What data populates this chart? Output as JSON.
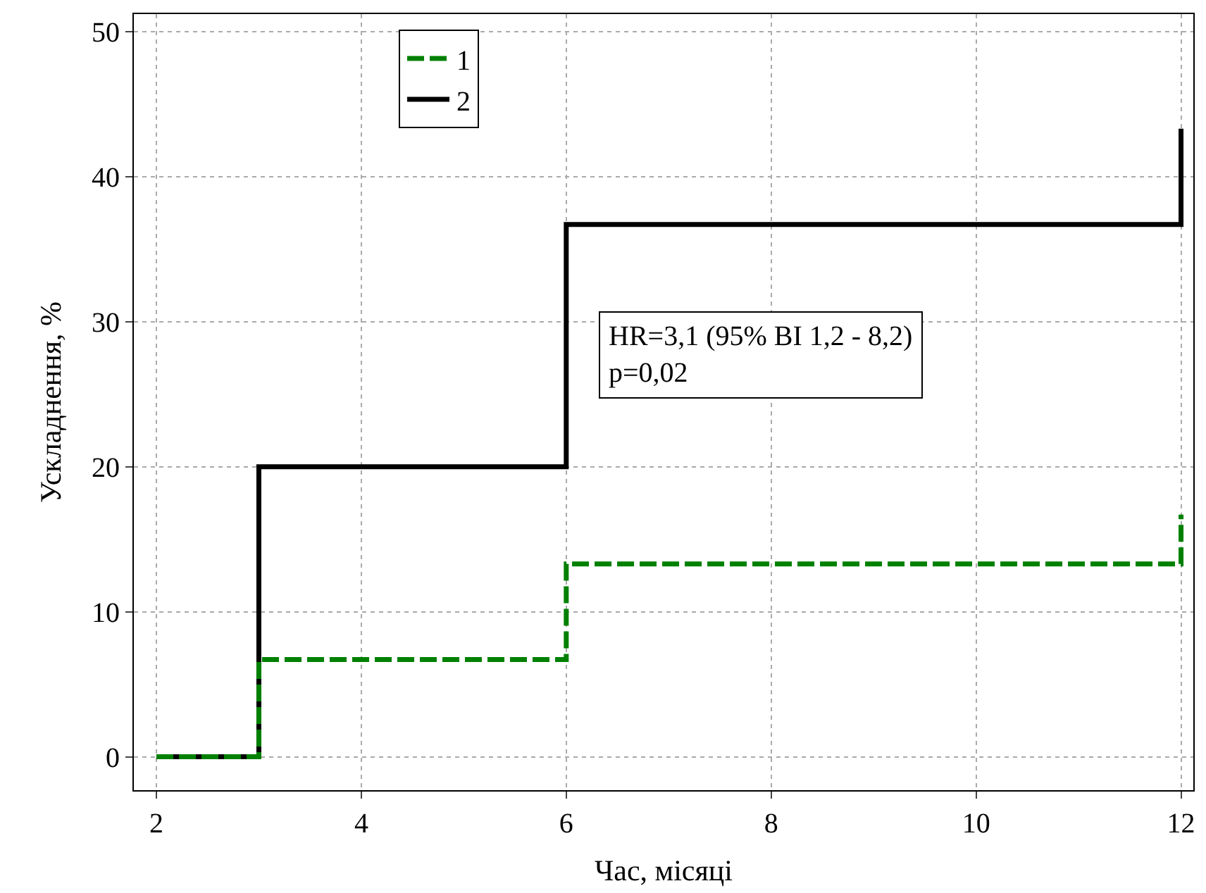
{
  "chart_data": {
    "type": "step",
    "xlabel": "Час, місяці",
    "ylabel": "Ускладнення, %",
    "x": [
      2,
      3,
      6,
      12
    ],
    "series": [
      {
        "name": "1",
        "color": "#008000",
        "values": [
          0,
          6.7,
          13.3,
          16.7
        ],
        "line_style": "dashed"
      },
      {
        "name": "2",
        "color": "#000000",
        "values": [
          0,
          20,
          36.7,
          43.3
        ],
        "line_style": "solid"
      }
    ],
    "xlim": [
      1.78,
      12.12
    ],
    "ylim": [
      -2.3,
      51.2
    ],
    "xticks": [
      2,
      4,
      6,
      8,
      10,
      12
    ],
    "yticks": [
      0,
      10,
      20,
      30,
      40,
      50
    ],
    "grid": true,
    "legend": "top left",
    "marker": "none",
    "annotations": [
      "HR=3,1 (95% ВІ 1,2 - 8,2)\np=0,02"
    ]
  }
}
